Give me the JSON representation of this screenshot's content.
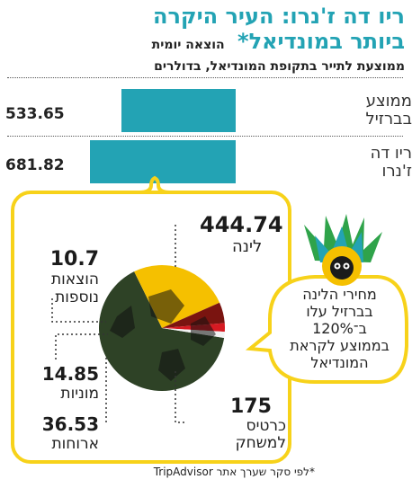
{
  "header": {
    "title_line1": "ריו דה ז'נרו: העיר היקרה",
    "title_line2": "ביותר במונדיאל*",
    "title_badge": "הוצאה יומית",
    "subtitle": "ממוצעת לתייר בתקופת המונדיאל, בדולרים"
  },
  "bars_chart": {
    "type": "bar",
    "categories": [
      "ממוצע בברזיל",
      "ריו דה ז'נרו"
    ],
    "category_lines": [
      [
        "ממוצע",
        "בברזיל"
      ],
      [
        "ריו דה",
        "ז'נרו"
      ]
    ],
    "values": [
      533.65,
      681.82
    ],
    "value_labels": [
      "533.65",
      "681.82"
    ],
    "bar_color": "#23a3b4"
  },
  "chart_data": {
    "type": "pie",
    "categories": [
      "לינה",
      "כרטיס למשחק",
      "ארוחות",
      "מוניות",
      "הוצאות נוספות"
    ],
    "values": [
      444.74,
      175,
      36.53,
      14.85,
      10.7
    ],
    "value_labels": [
      "444.74",
      "175",
      "36.53",
      "14.85",
      "10.7"
    ],
    "colors": [
      "#2e4226",
      "#f5c000",
      "#7a1410",
      "#d61a22",
      "#f2f2f2"
    ]
  },
  "labels": {
    "lodging_value": "444.74",
    "lodging_label": "לינה",
    "extras_value": "10.7",
    "extras_line1": "הוצאות",
    "extras_line2": "נוספות",
    "taxis_value": "14.85",
    "taxis_label": "מוניות",
    "meals_value": "36.53",
    "meals_label": "ארוחות",
    "tickets_value": "175",
    "tickets_line1": "כרטיס",
    "tickets_line2": "למשחק"
  },
  "bubble": {
    "line1": "מחירי הלינה",
    "line2": "בברזיל עלו",
    "line3": "ב־120%",
    "line4": "בממוצע לקראת",
    "line5": "המונדיאל"
  },
  "footnote": "*לפי סקר שערך אתר TripAdvisor"
}
